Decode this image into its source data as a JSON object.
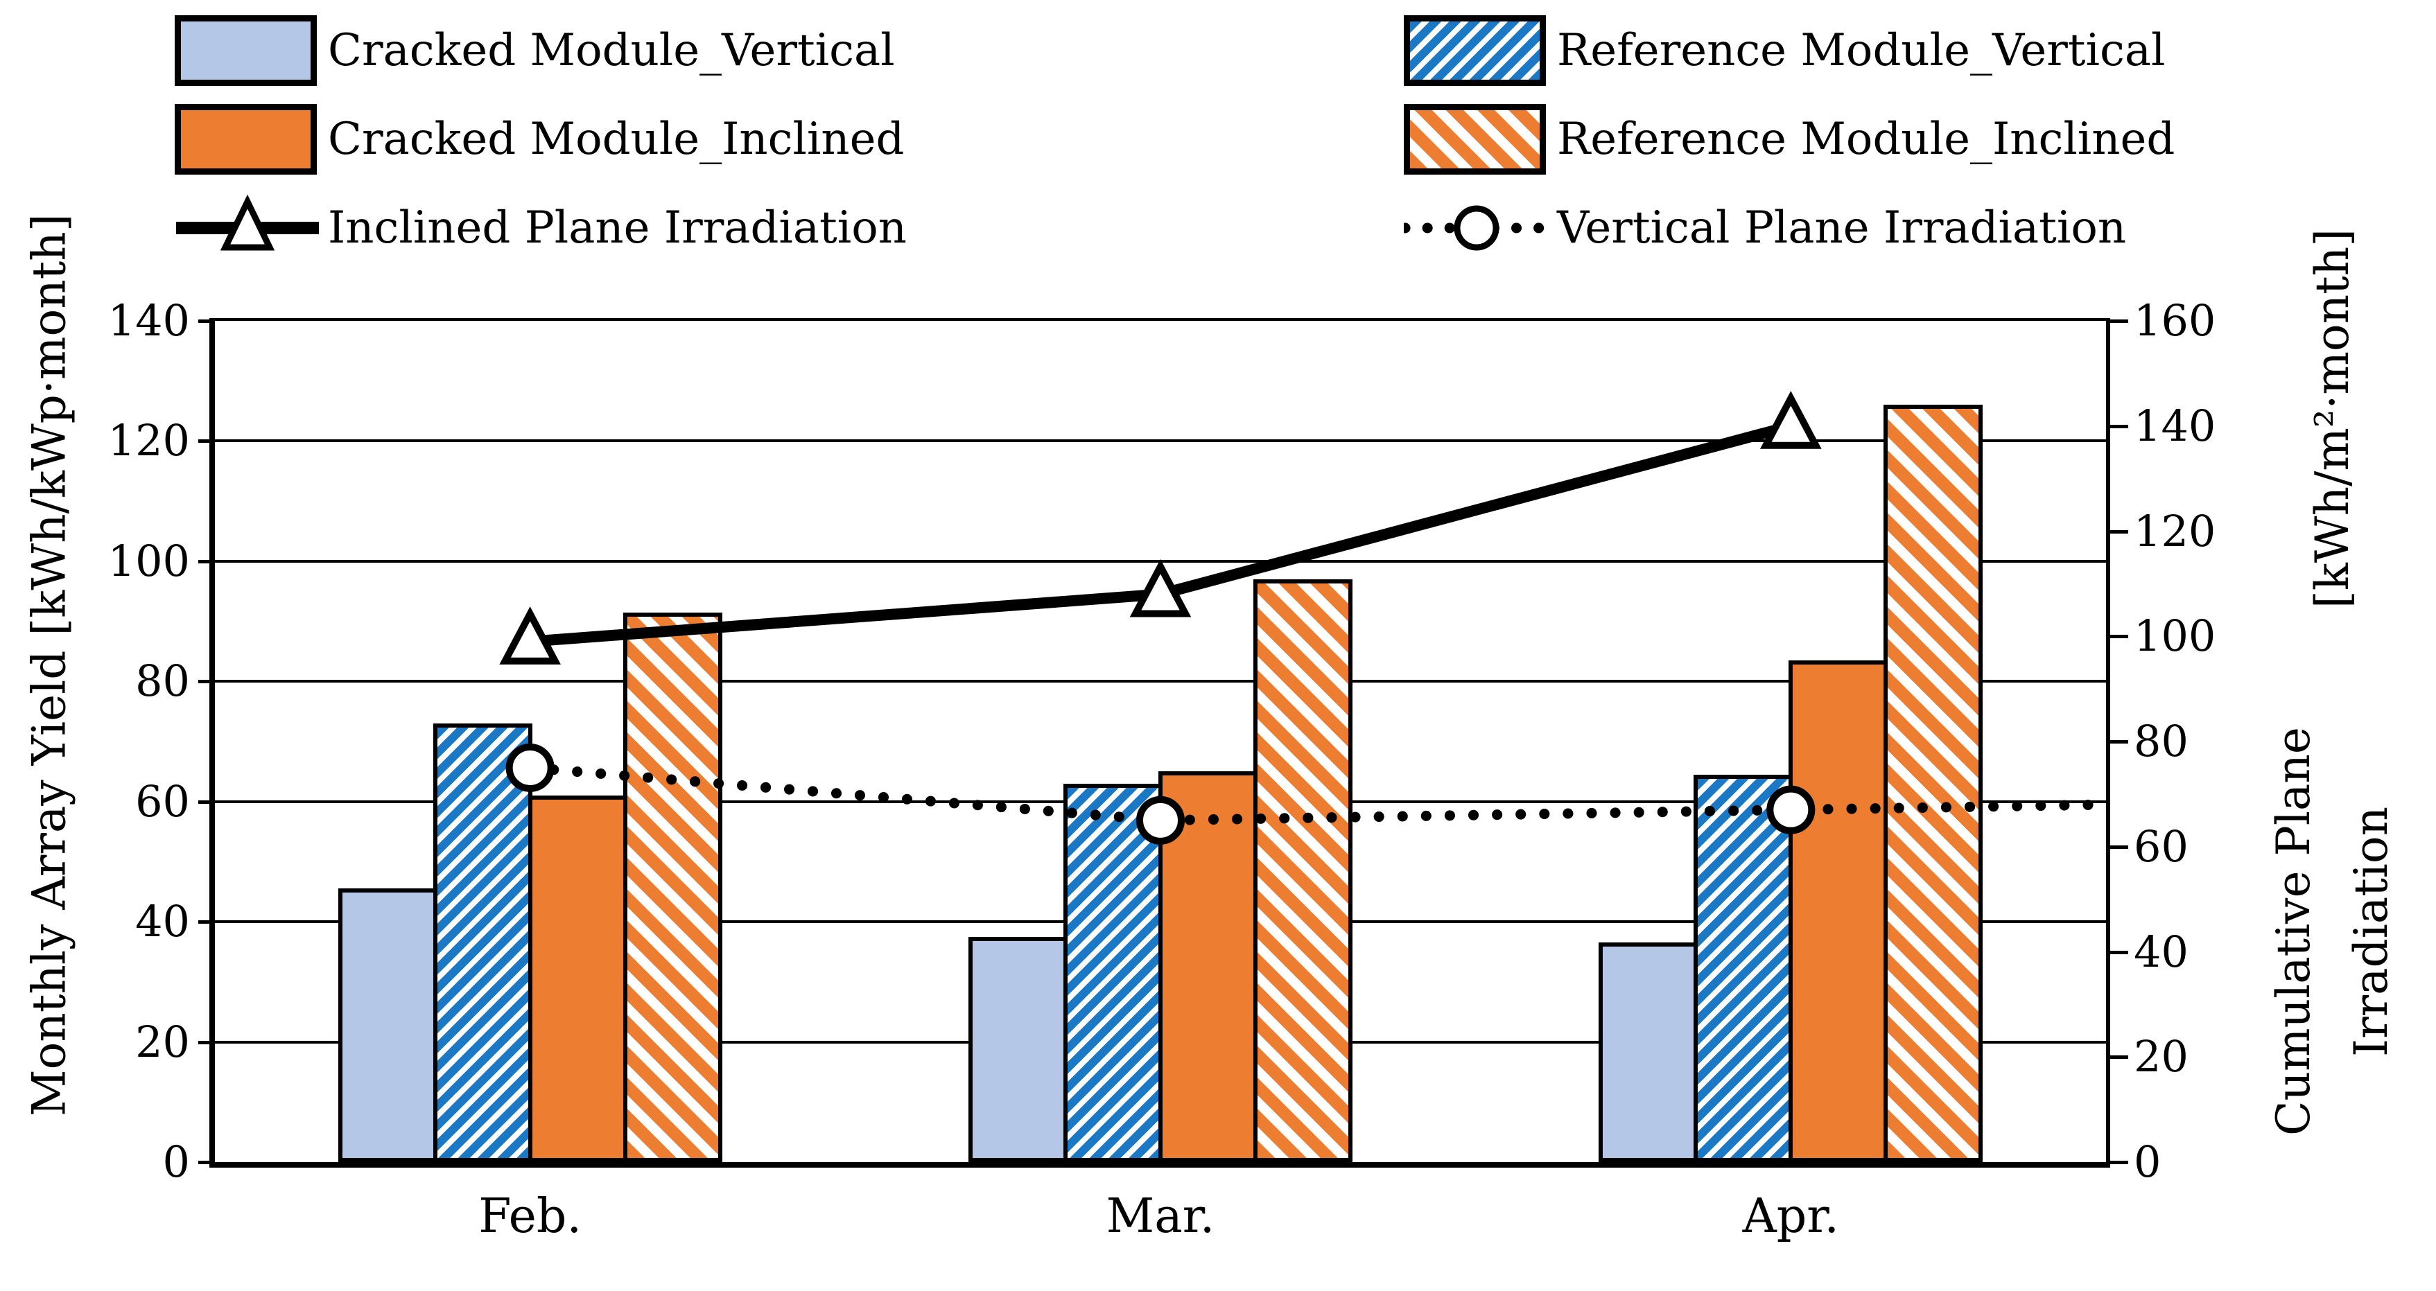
{
  "figure": {
    "background": "#ffffff",
    "frame_color": "#000000"
  },
  "chart_data": {
    "type": "bar",
    "subtype": "grouped-bars-with-two-lines",
    "categories": [
      "Feb.",
      "Mar.",
      "Apr."
    ],
    "bar_series": [
      {
        "name": "Cracked Module_Vertical",
        "axis": "left",
        "fill": "solid",
        "color": "#B4C7E7",
        "values": [
          45.5,
          37.5,
          36.5
        ]
      },
      {
        "name": "Reference Module_Vertical",
        "axis": "left",
        "fill": "hatch-fwd",
        "color": "#1B78C4",
        "values": [
          73,
          63,
          64.5
        ]
      },
      {
        "name": "Cracked Module_Inclined",
        "axis": "left",
        "fill": "solid",
        "color": "#ED7D31",
        "values": [
          61,
          65,
          83.5
        ]
      },
      {
        "name": "Reference Module_Inclined",
        "axis": "left",
        "fill": "hatch-back",
        "color": "#ED7D31",
        "values": [
          91.5,
          97,
          126
        ]
      }
    ],
    "line_series": [
      {
        "name": "Inclined Plane Irradiation",
        "axis": "right",
        "line": "solid",
        "marker": "triangle",
        "color": "#000000",
        "marker_fill": "#FFFFFF",
        "values": [
          99,
          108,
          140
        ]
      },
      {
        "name": "Vertical Plane Irradiation",
        "axis": "right",
        "line": "dotted",
        "marker": "circle",
        "color": "#000000",
        "marker_fill": "#FFFFFF",
        "values": [
          75,
          65,
          67
        ]
      }
    ],
    "left_axis": {
      "title": "Monthly Array Yield [kWh/kWp·month]",
      "min": 0,
      "max": 140,
      "step": 20,
      "ticks": [
        0,
        20,
        40,
        60,
        80,
        100,
        120,
        140
      ]
    },
    "right_axis": {
      "title_line1": "Cumulative Plane Irradiation",
      "title_line2": "[kWh/m²·month]",
      "min": 0,
      "max": 160,
      "step": 20,
      "ticks": [
        0,
        20,
        40,
        60,
        80,
        100,
        120,
        140,
        160
      ]
    },
    "grid": "horizontal",
    "legend_position": "top",
    "legend": [
      {
        "label": "Cracked Module_Vertical",
        "swatch": "box-solid",
        "color": "#B4C7E7",
        "col": 0,
        "row": 0
      },
      {
        "label": "Reference Module_Vertical",
        "swatch": "box-hatch-fwd",
        "color": "#1B78C4",
        "col": 1,
        "row": 0
      },
      {
        "label": "Cracked Module_Inclined",
        "swatch": "box-solid",
        "color": "#ED7D31",
        "col": 0,
        "row": 1
      },
      {
        "label": "Reference Module_Inclined",
        "swatch": "box-hatch-back",
        "color": "#ED7D31",
        "col": 1,
        "row": 1
      },
      {
        "label": "Inclined Plane Irradiation",
        "swatch": "line-solid-triangle",
        "color": "#000000",
        "col": 0,
        "row": 2
      },
      {
        "label": "Vertical Plane Irradiation",
        "swatch": "line-dotted-circle",
        "color": "#000000",
        "col": 1,
        "row": 2
      }
    ]
  }
}
